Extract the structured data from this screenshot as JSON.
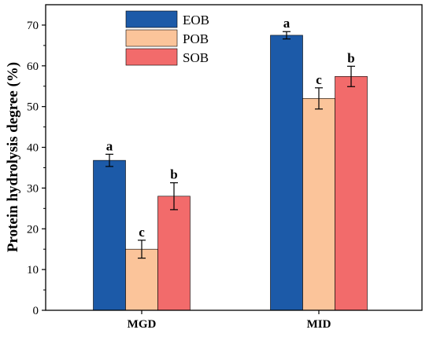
{
  "chart_data": {
    "type": "bar",
    "categories": [
      "MGD",
      "MID"
    ],
    "ylabel": "Protein hydrolysis degree (%)",
    "xlabel": "",
    "ylim": [
      0,
      75
    ],
    "yticks": [
      0,
      10,
      20,
      30,
      40,
      50,
      60,
      70
    ],
    "grid": false,
    "legend_position": "top-left",
    "series": [
      {
        "name": "EOB",
        "color": "#1c5aa8",
        "values": [
          36.8,
          67.5
        ],
        "errors": [
          1.5,
          0.9
        ],
        "labels": [
          "a",
          "a"
        ]
      },
      {
        "name": "POB",
        "color": "#fbc49a",
        "values": [
          15.0,
          52.0
        ],
        "errors": [
          2.2,
          2.6
        ],
        "labels": [
          "c",
          "c"
        ]
      },
      {
        "name": "SOB",
        "color": "#f26b6b",
        "values": [
          28.0,
          57.4
        ],
        "errors": [
          3.3,
          2.5
        ],
        "labels": [
          "b",
          "b"
        ]
      }
    ]
  }
}
